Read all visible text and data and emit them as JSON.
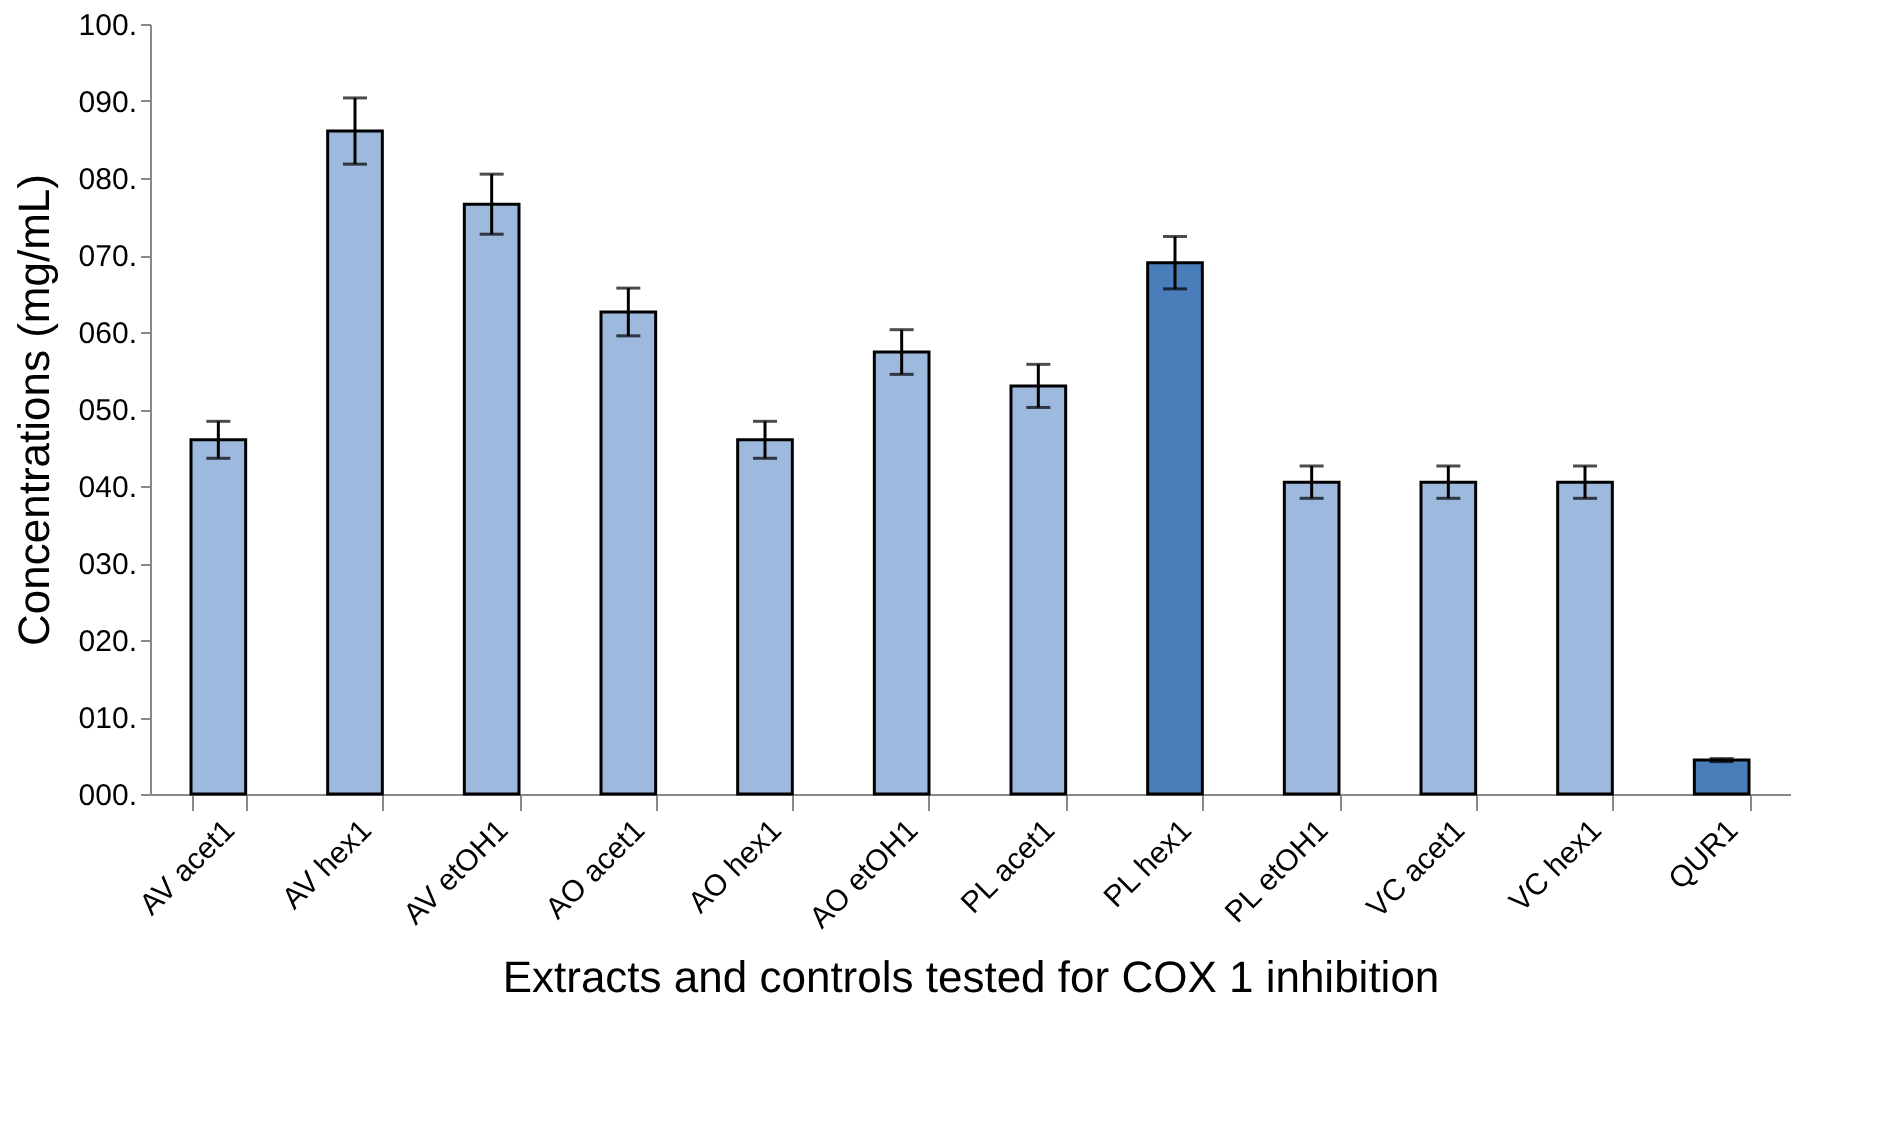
{
  "chart_data": {
    "type": "bar",
    "xlabel": "Extracts and controls tested for COX 1 inhibition",
    "ylabel": "Concentrations (mg/mL)",
    "categories": [
      "AV acet1",
      "AV hex1",
      "AV etOH1",
      "AO acet1",
      "AO hex1",
      "AO etOH1",
      "PL acet1",
      "PL hex1",
      "PL etOH1",
      "VC acet1",
      "VC hex1",
      "QUR1"
    ],
    "values": [
      46,
      86.1,
      76.6,
      62.6,
      46,
      57.4,
      53,
      69,
      40.5,
      40.5,
      40.5,
      4.4
    ],
    "errors": [
      2.4,
      4.3,
      3.9,
      3.1,
      2.4,
      2.9,
      2.8,
      3.4,
      2.1,
      2.1,
      2.1,
      0.2
    ],
    "colors": [
      "#9db9dd",
      "#9db9dd",
      "#9db9dd",
      "#9db9dd",
      "#9db9dd",
      "#9db9dd",
      "#9db9dd",
      "#4a7ebb",
      "#9db9dd",
      "#9db9dd",
      "#9db9dd",
      "#4a7ebb"
    ],
    "ylim": [
      0,
      100
    ],
    "yticks": [
      {
        "value": 0,
        "label": "000."
      },
      {
        "value": 10,
        "label": "010."
      },
      {
        "value": 20,
        "label": "020."
      },
      {
        "value": 30,
        "label": "030."
      },
      {
        "value": 40,
        "label": "040."
      },
      {
        "value": 50,
        "label": "050."
      },
      {
        "value": 60,
        "label": "060."
      },
      {
        "value": 70,
        "label": "070."
      },
      {
        "value": 80,
        "label": "080."
      },
      {
        "value": 90,
        "label": "090."
      },
      {
        "value": 100,
        "label": "100."
      }
    ],
    "grid": false
  }
}
